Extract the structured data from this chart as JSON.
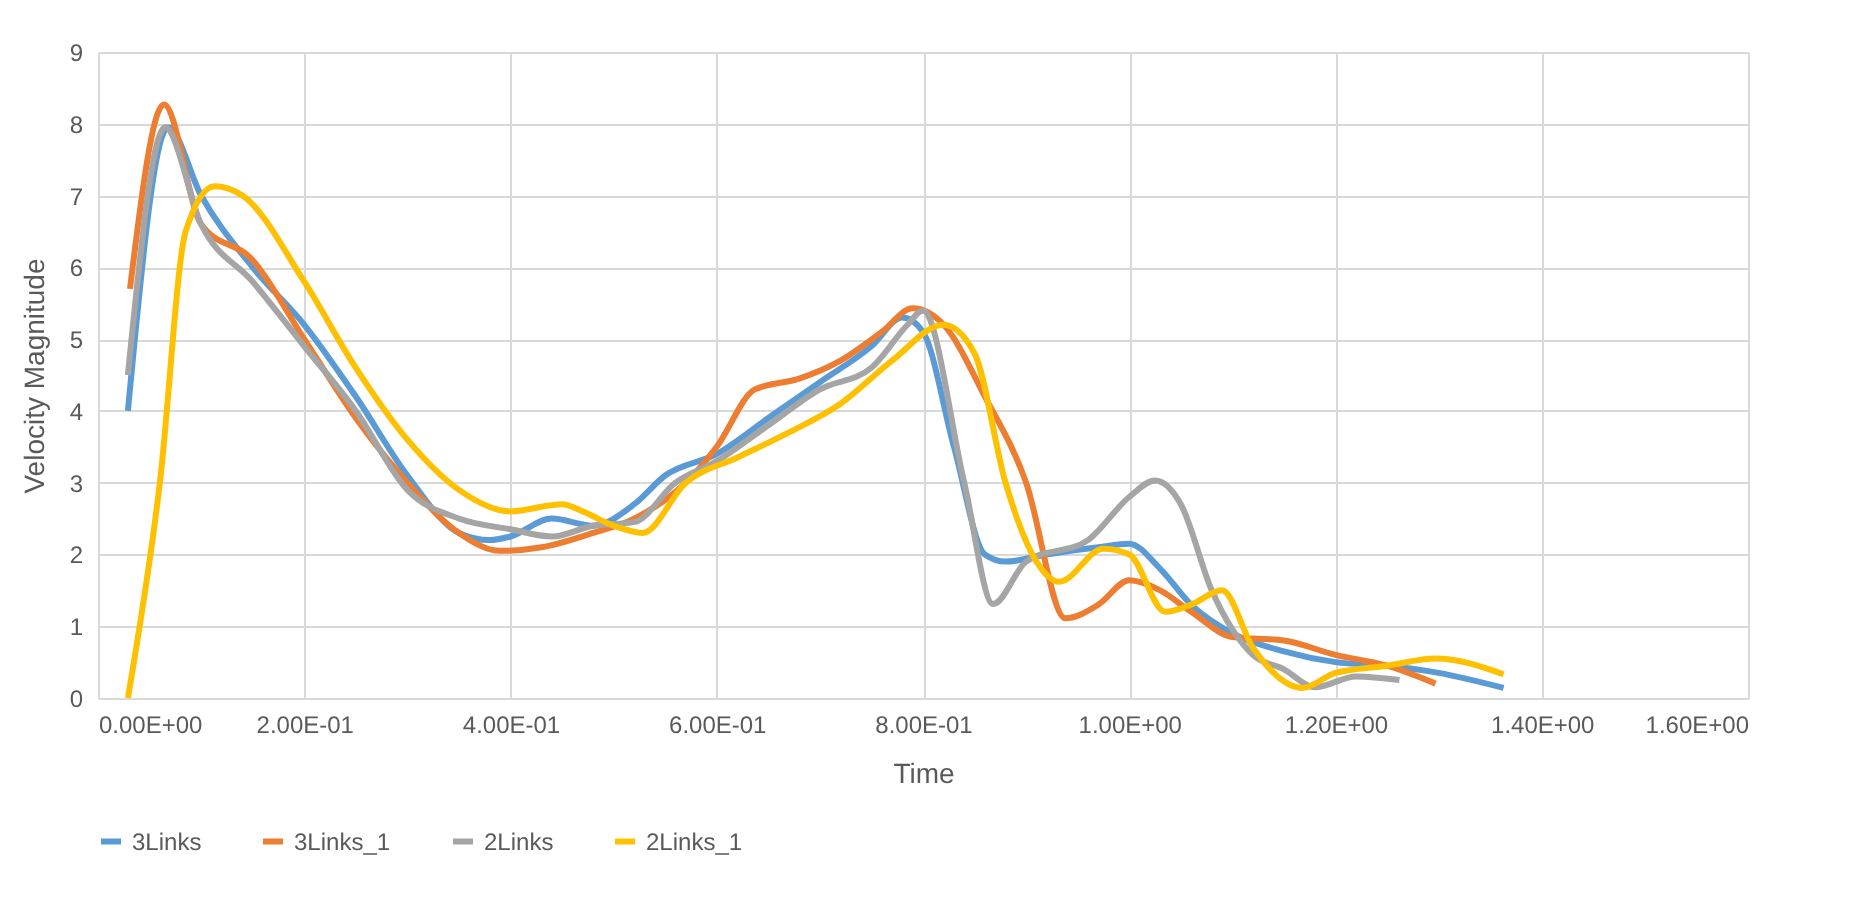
{
  "chart_data": {
    "type": "line",
    "xlabel": "Time",
    "ylabel": "Velocity Magnitude",
    "xlim": [
      0,
      1.6
    ],
    "xticks": [
      {
        "value": 0,
        "label": "0.00E+00"
      },
      {
        "value": 0.2,
        "label": "2.00E-01"
      },
      {
        "value": 0.4,
        "label": "4.00E-01"
      },
      {
        "value": 0.6,
        "label": "6.00E-01"
      },
      {
        "value": 0.8,
        "label": "8.00E-01"
      },
      {
        "value": 1.0,
        "label": "1.00E+00"
      },
      {
        "value": 1.2,
        "label": "1.20E+00"
      },
      {
        "value": 1.4,
        "label": "1.40E+00"
      },
      {
        "value": 1.6,
        "label": "1.60E+00"
      }
    ],
    "ylim": [
      0,
      9
    ],
    "yticks": [
      0,
      1,
      2,
      3,
      4,
      5,
      6,
      7,
      8,
      9
    ],
    "grid": true,
    "legend": "bottom",
    "line_style": "solid",
    "series": [
      {
        "name": "3Links",
        "color": "#5b9bd5",
        "x": [
          0.029,
          0.068,
          0.1,
          0.15,
          0.2,
          0.25,
          0.3,
          0.35,
          0.38,
          0.4,
          0.44,
          0.48,
          0.52,
          0.55,
          0.6,
          0.65,
          0.7,
          0.75,
          0.78,
          0.8,
          0.83,
          0.86,
          0.88,
          0.92,
          0.97,
          1.0,
          1.03,
          1.06,
          1.1,
          1.15,
          1.2,
          1.25,
          1.3,
          1.363
        ],
        "values": [
          4.0,
          7.95,
          7.0,
          6.0,
          5.2,
          4.2,
          3.1,
          2.3,
          2.2,
          2.25,
          2.5,
          2.4,
          2.7,
          3.1,
          3.4,
          3.9,
          4.4,
          4.9,
          5.3,
          5.1,
          3.5,
          2.0,
          1.9,
          2.0,
          2.1,
          2.15,
          1.8,
          1.3,
          0.9,
          0.65,
          0.5,
          0.45,
          0.35,
          0.14
        ]
      },
      {
        "name": "3Links_1",
        "color": "#ed7d31",
        "x": [
          0.031,
          0.064,
          0.1,
          0.15,
          0.2,
          0.25,
          0.3,
          0.35,
          0.39,
          0.43,
          0.48,
          0.52,
          0.57,
          0.6,
          0.637,
          0.68,
          0.72,
          0.76,
          0.79,
          0.82,
          0.86,
          0.9,
          0.938,
          0.97,
          1.0,
          1.03,
          1.06,
          1.1,
          1.15,
          1.2,
          1.25,
          1.297
        ],
        "values": [
          5.7,
          8.27,
          6.6,
          6.1,
          5.0,
          3.9,
          3.0,
          2.3,
          2.05,
          2.1,
          2.3,
          2.5,
          3.0,
          3.5,
          4.3,
          4.45,
          4.7,
          5.1,
          5.43,
          5.2,
          4.2,
          3.0,
          1.11,
          1.3,
          1.64,
          1.5,
          1.2,
          0.85,
          0.8,
          0.6,
          0.45,
          0.2
        ]
      },
      {
        "name": "2Links",
        "color": "#a5a5a5",
        "x": [
          0.029,
          0.065,
          0.1,
          0.15,
          0.2,
          0.25,
          0.3,
          0.35,
          0.4,
          0.44,
          0.48,
          0.52,
          0.56,
          0.6,
          0.65,
          0.7,
          0.75,
          0.785,
          0.8,
          0.84,
          0.868,
          0.9,
          0.96,
          1.0,
          1.025,
          1.05,
          1.08,
          1.12,
          1.15,
          1.18,
          1.22,
          1.262
        ],
        "values": [
          4.5,
          7.95,
          6.6,
          5.8,
          4.9,
          4.0,
          2.9,
          2.5,
          2.35,
          2.25,
          2.4,
          2.45,
          3.0,
          3.3,
          3.8,
          4.3,
          4.6,
          5.2,
          5.4,
          3.0,
          1.31,
          1.9,
          2.2,
          2.8,
          3.03,
          2.7,
          1.5,
          0.6,
          0.4,
          0.15,
          0.3,
          0.25
        ]
      },
      {
        "name": "2Links_1",
        "color": "#ffc000",
        "x": [
          0.029,
          0.06,
          0.085,
          0.113,
          0.14,
          0.2,
          0.25,
          0.3,
          0.35,
          0.4,
          0.45,
          0.47,
          0.5,
          0.528,
          0.57,
          0.62,
          0.67,
          0.72,
          0.77,
          0.82,
          0.85,
          0.88,
          0.91,
          0.932,
          0.975,
          1.0,
          1.035,
          1.06,
          1.09,
          1.12,
          1.168,
          1.2,
          1.25,
          1.297,
          1.363
        ],
        "values": [
          0,
          3.0,
          6.5,
          7.13,
          7.0,
          5.8,
          4.6,
          3.6,
          2.9,
          2.6,
          2.7,
          2.6,
          2.4,
          2.3,
          3.0,
          3.35,
          3.7,
          4.1,
          4.7,
          5.2,
          4.8,
          3.0,
          1.9,
          1.62,
          2.08,
          2.0,
          1.2,
          1.3,
          1.5,
          0.7,
          0.14,
          0.35,
          0.45,
          0.55,
          0.33
        ]
      }
    ]
  }
}
